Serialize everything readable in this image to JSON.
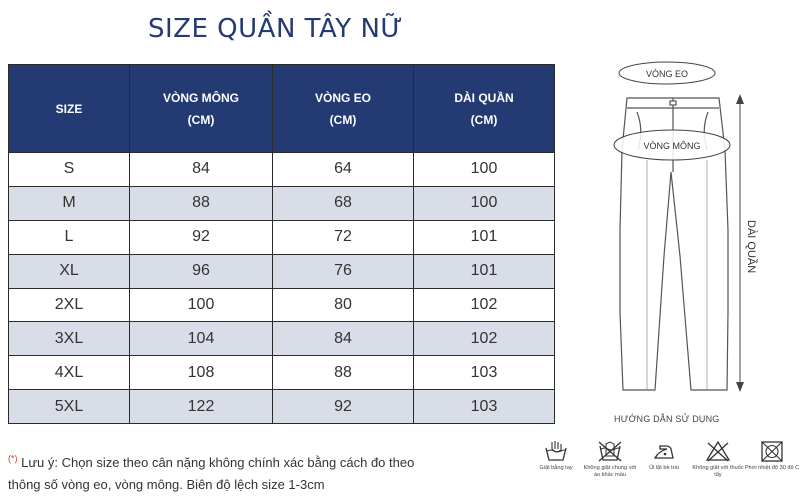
{
  "title": "SIZE QUẦN TÂY NỮ",
  "table": {
    "headers": [
      {
        "line1": "SIZE",
        "line2": ""
      },
      {
        "line1": "VÒNG MÔNG",
        "line2": "(CM)"
      },
      {
        "line1": "VÒNG EO",
        "line2": "(CM)"
      },
      {
        "line1": "DÀI QUẦN",
        "line2": "(CM)"
      }
    ],
    "rows": [
      [
        "S",
        "84",
        "64",
        "100"
      ],
      [
        "M",
        "88",
        "68",
        "100"
      ],
      [
        "L",
        "92",
        "72",
        "101"
      ],
      [
        "XL",
        "96",
        "76",
        "101"
      ],
      [
        "2XL",
        "100",
        "80",
        "102"
      ],
      [
        "3XL",
        "104",
        "84",
        "102"
      ],
      [
        "4XL",
        "108",
        "88",
        "103"
      ],
      [
        "5XL",
        "122",
        "92",
        "103"
      ]
    ]
  },
  "note": {
    "star": "(*)",
    "line1": "Lưu ý: Chọn size theo cân nặng không chính xác bằng cách đo theo",
    "line2": "thông số vòng eo, vòng mông. Biên độ lệch size 1-3cm"
  },
  "diagram": {
    "waist_label": "VÒNG EO",
    "hip_label": "VÒNG MÔNG",
    "length_label": "DÀI QUẦN",
    "guide_title": "HƯỚNG DẪN SỬ DỤNG"
  },
  "care": [
    {
      "icon": "hand-wash-icon",
      "label": "Giặt bằng tay"
    },
    {
      "icon": "no-wash-with-other-icon",
      "label": "Không giặt chung với áo khác màu"
    },
    {
      "icon": "iron-low-icon",
      "label": "Ủi lật bề trái"
    },
    {
      "icon": "no-bleach-icon",
      "label": "Không giặt với thuốc tẩy"
    },
    {
      "icon": "dry-in-shade-icon",
      "label": "Phơi nhiệt độ 30 độ C"
    }
  ],
  "colors": {
    "header_bg": "#243a73",
    "alt_row_bg": "#d8dde8",
    "title": "#243a73",
    "note_star": "#e53935"
  }
}
